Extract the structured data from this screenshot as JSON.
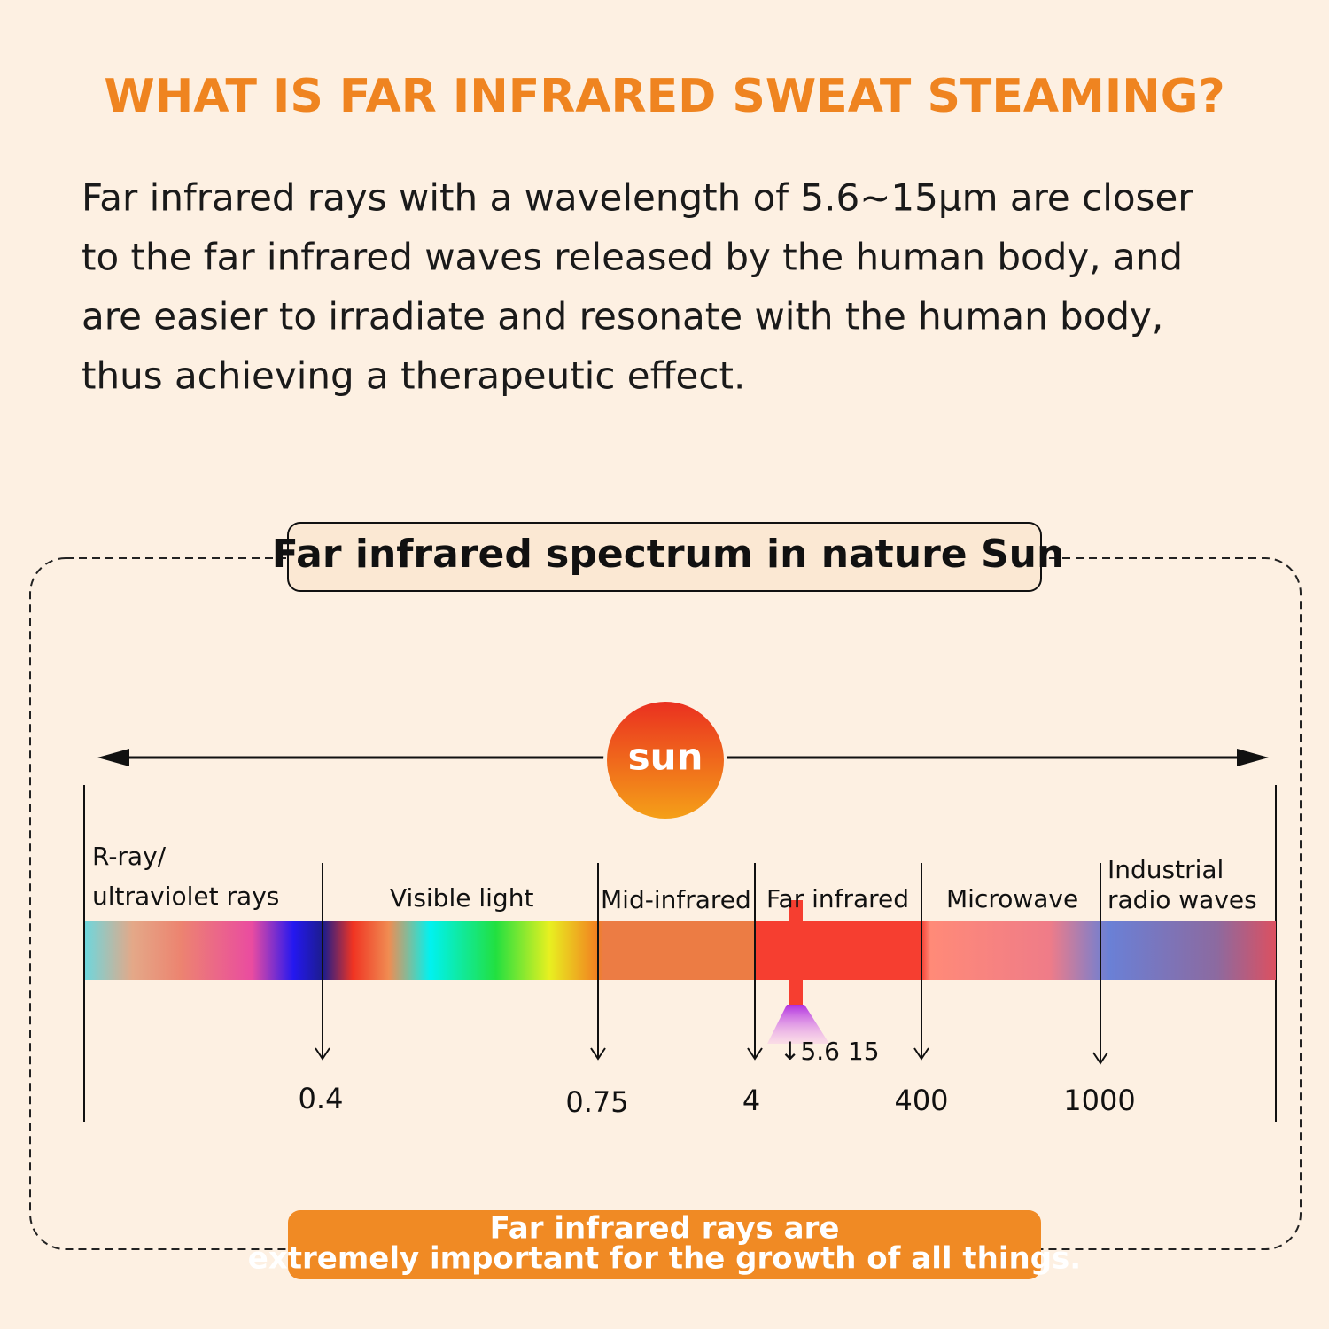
{
  "header": {
    "title": "WHAT IS FAR INFRARED SWEAT STEAMING?"
  },
  "intro": {
    "lines": [
      "Far infrared rays with a wavelength of 5.6~15μm are closer",
      "to the far infrared waves released by the human body, and",
      "are easier to irradiate and resonate with the human body,",
      "thus achieving a therapeutic effect."
    ]
  },
  "spectrum": {
    "title": "Far infrared spectrum in nature Sun",
    "sun": "sun",
    "bands": [
      {
        "lines": [
          "R-ray/",
          "ultraviolet rays"
        ]
      },
      {
        "lines": [
          "Visible light"
        ]
      },
      {
        "lines": [
          "Mid-infrared"
        ]
      },
      {
        "lines": [
          "Far infrared"
        ]
      },
      {
        "lines": [
          "Microwave"
        ]
      },
      {
        "lines": [
          "Industrial",
          "radio waves"
        ]
      }
    ],
    "wavelengths": [
      "0.4",
      "0.75",
      "4",
      "400",
      "1000"
    ],
    "marker": "↓5.6 15"
  },
  "footer": {
    "lines": [
      "Far infrared rays are",
      "extremely important for the growth of all things."
    ]
  }
}
